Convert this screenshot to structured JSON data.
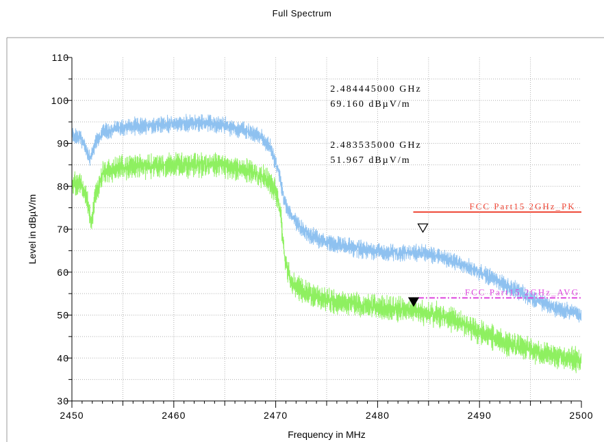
{
  "chart_data": {
    "type": "line",
    "title": "Full Spectrum",
    "xlabel": "Frequency in MHz",
    "ylabel": "Level in dBµV/m",
    "xlim": [
      2450,
      2500
    ],
    "ylim": [
      30,
      110
    ],
    "x_ticks": [
      "2450",
      "2460",
      "2470",
      "2480",
      "2490",
      "2500"
    ],
    "y_ticks": [
      "30",
      "40",
      "50",
      "60",
      "70",
      "80",
      "90",
      "100",
      "110"
    ],
    "grid": true,
    "series": [
      {
        "color": "#8ec1f0",
        "noise": 1.8,
        "points": [
          [
            2450,
            92
          ],
          [
            2450.8,
            91.5
          ],
          [
            2451.2,
            89.5
          ],
          [
            2451.8,
            86.5
          ],
          [
            2452.3,
            90
          ],
          [
            2453,
            92.5
          ],
          [
            2455,
            93.8
          ],
          [
            2460,
            94.5
          ],
          [
            2463,
            94.8
          ],
          [
            2465,
            94.2
          ],
          [
            2467,
            93
          ],
          [
            2468.5,
            91.5
          ],
          [
            2469.5,
            89
          ],
          [
            2470.3,
            83
          ],
          [
            2470.8,
            77
          ],
          [
            2471.5,
            73
          ],
          [
            2473,
            69
          ],
          [
            2475,
            67
          ],
          [
            2478,
            65.5
          ],
          [
            2481,
            64.5
          ],
          [
            2484.5,
            64.5
          ],
          [
            2487,
            63
          ],
          [
            2489,
            61
          ],
          [
            2491,
            59
          ],
          [
            2493,
            56.5
          ],
          [
            2495,
            54
          ],
          [
            2497,
            52
          ],
          [
            2500,
            50
          ]
        ]
      },
      {
        "color": "#8ef060",
        "noise": 2.6,
        "points": [
          [
            2450,
            81
          ],
          [
            2451,
            80
          ],
          [
            2451.5,
            77
          ],
          [
            2451.9,
            71.5
          ],
          [
            2452.3,
            78
          ],
          [
            2453,
            83
          ],
          [
            2455,
            84.5
          ],
          [
            2460,
            85
          ],
          [
            2463,
            85
          ],
          [
            2465,
            84.8
          ],
          [
            2467,
            83.8
          ],
          [
            2469,
            82
          ],
          [
            2470,
            79
          ],
          [
            2470.5,
            73
          ],
          [
            2470.9,
            63
          ],
          [
            2471.5,
            58
          ],
          [
            2473,
            55
          ],
          [
            2476,
            53
          ],
          [
            2480,
            51.8
          ],
          [
            2483.5,
            51
          ],
          [
            2486,
            50
          ],
          [
            2488,
            48.5
          ],
          [
            2490,
            46
          ],
          [
            2492,
            44
          ],
          [
            2495,
            42
          ],
          [
            2498,
            40
          ],
          [
            2500,
            39.5
          ]
        ]
      }
    ],
    "limits": [
      {
        "name": "FCC Part15 2GHz_PK",
        "color": "#ee4433",
        "style": "solid",
        "x": [
          2483.5,
          2500
        ],
        "y": 74
      },
      {
        "name": "FCC Part15 2GHz_AVG",
        "color": "#dd44dd",
        "style": "dashdot",
        "x": [
          2484,
          2500
        ],
        "y": 54
      }
    ],
    "markers": [
      {
        "freq_text": "2.484445000 GHz",
        "level_text": "69.160 dBµV/m",
        "x": 2484.445,
        "y": 69.16,
        "style": "open"
      },
      {
        "freq_text": "2.483535000 GHz",
        "level_text": "51.967 dBµV/m",
        "x": 2483.535,
        "y": 51.967,
        "style": "filled"
      }
    ]
  }
}
